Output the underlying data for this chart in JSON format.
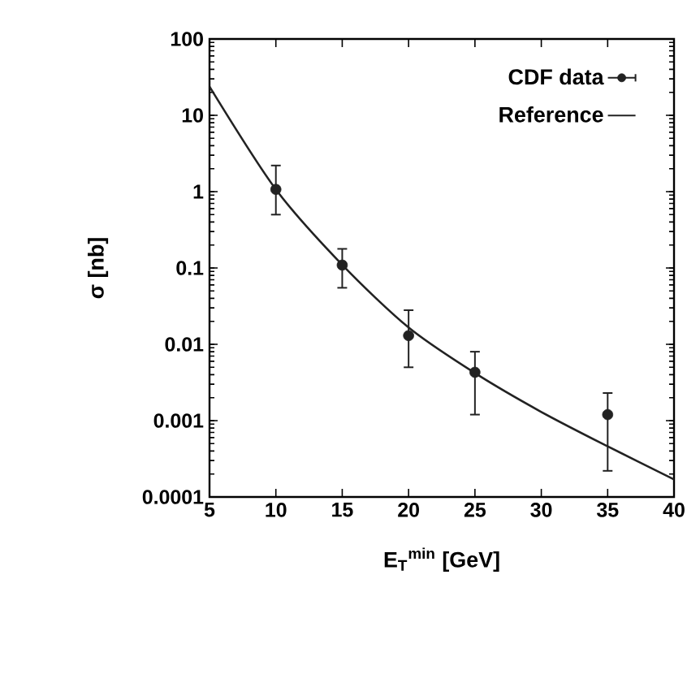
{
  "chart_data": {
    "type": "scatter",
    "xlabel": "E$_{T}$$^{min}$ [GeV]",
    "ylabel": "σ [nb]",
    "xlim": [
      5,
      40
    ],
    "xticks": [
      5,
      10,
      15,
      20,
      25,
      30,
      35,
      40
    ],
    "ylim": [
      0.0001,
      100
    ],
    "yticks": [
      0.0001,
      0.001,
      0.01,
      0.1,
      1,
      10,
      100
    ],
    "log": "y",
    "legend": "top right",
    "series": [
      {
        "name": "CDF data",
        "color": "#222222",
        "marker": "circle",
        "x": [
          10,
          15,
          20,
          25,
          35
        ],
        "values": [
          1.07,
          0.109,
          0.013,
          0.0043,
          0.0012
        ],
        "errors": [
          [
            0.5,
            2.2
          ],
          [
            0.055,
            0.178
          ],
          [
            0.005,
            0.028
          ],
          [
            0.0012,
            0.008
          ],
          [
            0.00022,
            0.0023
          ]
        ]
      },
      {
        "name": "Reference",
        "type": "line",
        "color": "#222222",
        "line_style": "solid",
        "x": [
          5,
          10,
          15,
          20,
          25,
          30,
          35,
          40
        ],
        "values": [
          23.8,
          1.07,
          0.11,
          0.0166,
          0.0042,
          0.0013,
          0.00046,
          0.00017
        ]
      }
    ]
  }
}
